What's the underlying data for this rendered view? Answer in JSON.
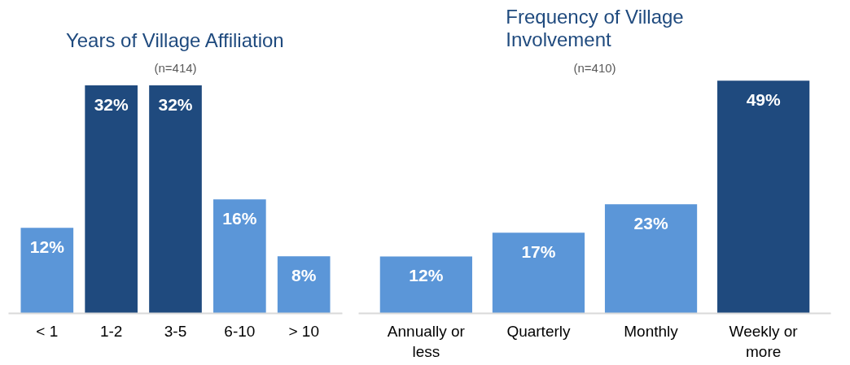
{
  "chart_data": [
    {
      "type": "bar",
      "title": "Years of Village Affiliation",
      "subtitle": "(n=414)",
      "categories": [
        "< 1",
        "1-2",
        "3-5",
        "6-10",
        "> 10"
      ],
      "values": [
        12,
        32,
        32,
        16,
        8
      ],
      "colors": [
        "#5b96d8",
        "#1f4a7e",
        "#1f4a7e",
        "#5b96d8",
        "#5b96d8"
      ],
      "data_labels": true,
      "value_labels": [
        "12%",
        "32%",
        "32%",
        "16%",
        "8%"
      ],
      "grid": false
    },
    {
      "type": "bar",
      "title": "Frequency of Village Involvement",
      "subtitle": "(n=410)",
      "categories": [
        "Annually or less",
        "Quarterly",
        "Monthly",
        "Weekly or more"
      ],
      "values": [
        12,
        17,
        23,
        49
      ],
      "colors": [
        "#5b96d8",
        "#5b96d8",
        "#5b96d8",
        "#1f4a7e"
      ],
      "data_labels": true,
      "value_labels": [
        "12%",
        "17%",
        "23%",
        "49%"
      ],
      "grid": false
    }
  ]
}
